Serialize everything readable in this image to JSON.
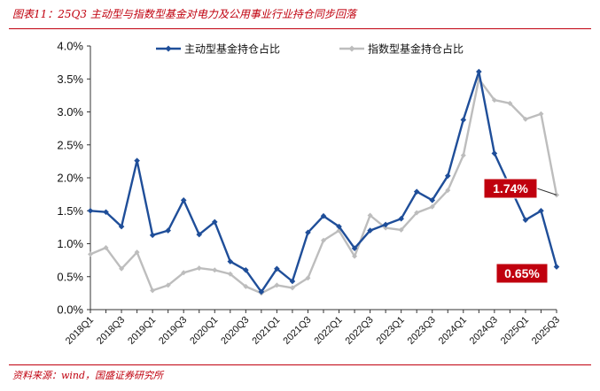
{
  "figure": {
    "title": "图表11：25Q3 主动型与指数型基金对电力及公用事业行业持仓同步回落",
    "source": "资料来源：wind，国盛证券研究所"
  },
  "colors": {
    "active": "#1f4e99",
    "index": "#bdbdbd",
    "callout": "#c0000e",
    "accent": "#c0000e"
  },
  "chart_data": {
    "type": "line",
    "x": [
      "2018Q1",
      "2018Q2",
      "2018Q3",
      "2018Q4",
      "2019Q1",
      "2019Q2",
      "2019Q3",
      "2019Q4",
      "2020Q1",
      "2020Q2",
      "2020Q3",
      "2020Q4",
      "2021Q1",
      "2021Q2",
      "2021Q3",
      "2021Q4",
      "2022Q1",
      "2022Q2",
      "2022Q3",
      "2022Q4",
      "2023Q1",
      "2023Q2",
      "2023Q3",
      "2023Q4",
      "2024Q1",
      "2024Q2",
      "2024Q3",
      "2024Q4",
      "2025Q1",
      "2025Q2",
      "2025Q3"
    ],
    "xticks": [
      "2018Q1",
      "2018Q3",
      "2019Q1",
      "2019Q3",
      "2020Q1",
      "2020Q3",
      "2021Q1",
      "2021Q3",
      "2022Q1",
      "2022Q3",
      "2023Q1",
      "2023Q3",
      "2024Q1",
      "2024Q3",
      "2025Q1",
      "2025Q3"
    ],
    "series": [
      {
        "name": "主动型基金持仓占比",
        "values": [
          1.5,
          1.48,
          1.26,
          2.26,
          1.13,
          1.2,
          1.66,
          1.14,
          1.33,
          0.73,
          0.6,
          0.27,
          0.62,
          0.43,
          1.17,
          1.42,
          1.26,
          0.93,
          1.2,
          1.29,
          1.38,
          1.79,
          1.66,
          2.03,
          2.88,
          3.61,
          2.37,
          1.86,
          1.36,
          1.5,
          0.65
        ]
      },
      {
        "name": "指数型基金持仓占比",
        "values": [
          0.84,
          0.94,
          0.62,
          0.87,
          0.29,
          0.37,
          0.56,
          0.63,
          0.6,
          0.54,
          0.35,
          0.25,
          0.37,
          0.33,
          0.48,
          1.05,
          1.2,
          0.81,
          1.43,
          1.24,
          1.21,
          1.47,
          1.56,
          1.81,
          2.34,
          3.5,
          3.18,
          3.13,
          2.89,
          2.97,
          1.74
        ]
      }
    ],
    "ylim": [
      0,
      4.0
    ],
    "yticks": [
      0,
      0.5,
      1.0,
      1.5,
      2.0,
      2.5,
      3.0,
      3.5,
      4.0
    ],
    "ytick_labels": [
      "0.0%",
      "0.5%",
      "1.0%",
      "1.5%",
      "2.0%",
      "2.5%",
      "3.0%",
      "3.5%",
      "4.0%"
    ],
    "legend": "top-center",
    "grid": false,
    "annotations": [
      {
        "text": "1.74%",
        "series": 1,
        "index": 30
      },
      {
        "text": "0.65%",
        "series": 0,
        "index": 30
      }
    ]
  }
}
